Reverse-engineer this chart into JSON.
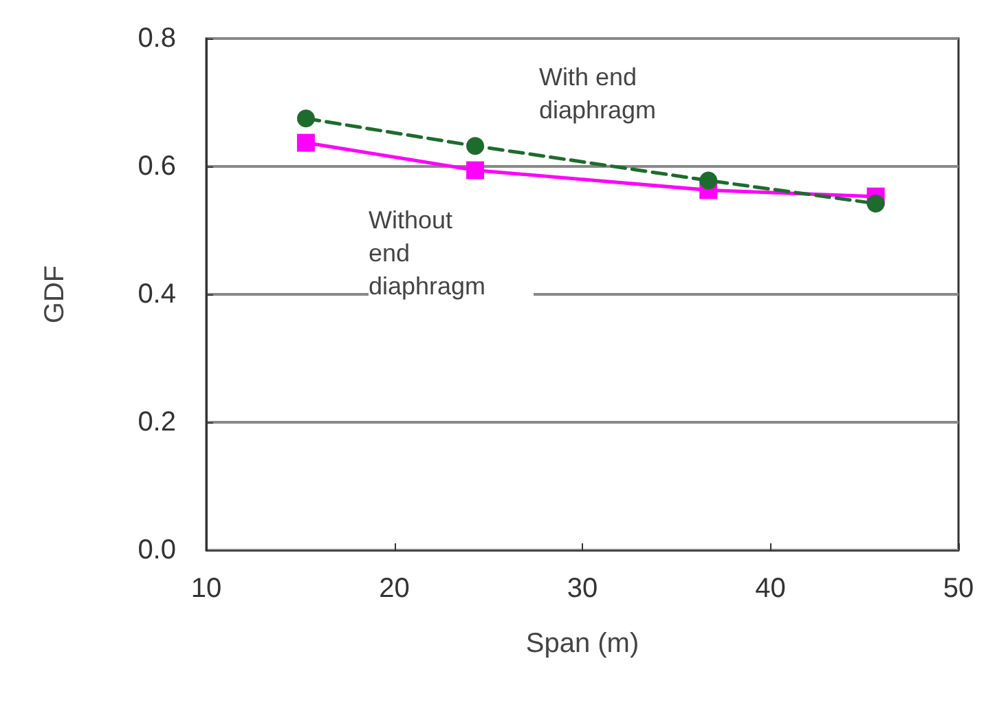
{
  "chart_data": {
    "type": "line",
    "xlabel": "Span (m)",
    "ylabel": "GDF",
    "x": [
      15.3,
      24.3,
      36.7,
      45.6
    ],
    "series": [
      {
        "name": "With end diaphragm",
        "color": "#1e6b2e",
        "values": [
          0.675,
          0.632,
          0.578,
          0.542
        ],
        "marker": "circle",
        "line_style": "dashed"
      },
      {
        "name": "Without end diaphragm",
        "color": "#ff00ff",
        "values": [
          0.637,
          0.594,
          0.563,
          0.553
        ],
        "marker": "square",
        "line_style": "solid"
      }
    ],
    "xlim": [
      10,
      50
    ],
    "xticks": [
      10,
      20,
      30,
      40,
      50
    ],
    "ylim": [
      0,
      0.8
    ],
    "yticks": [
      {
        "value": 0,
        "label": "0.0"
      },
      0.2,
      0.4,
      0.6,
      0.8
    ],
    "grid": "y",
    "legend": false
  }
}
